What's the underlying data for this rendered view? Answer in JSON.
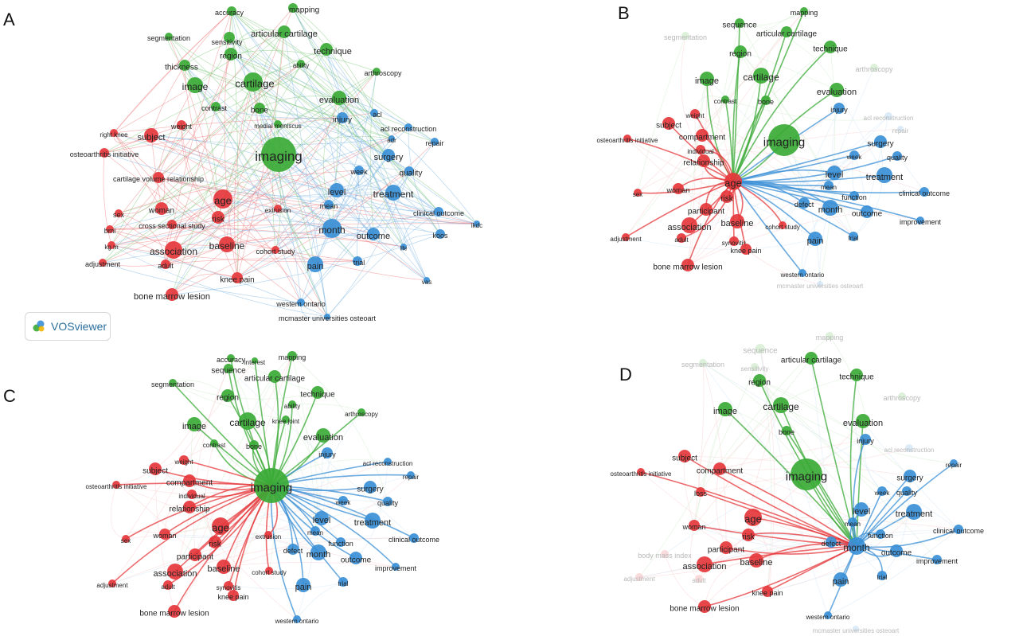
{
  "colors": {
    "green": "#3aaa35",
    "red": "#e5373b",
    "blue": "#3a8fd6",
    "faded": "#d9d9d9"
  },
  "watermark": {
    "label": "VOSviewer",
    "icon": "vosviewer-logo-icon"
  },
  "panels": [
    {
      "letter": "A",
      "focus": "",
      "nodes": [
        {
          "label": "accuracy",
          "cluster": "green"
        },
        {
          "label": "mapping",
          "cluster": "green"
        },
        {
          "label": "segmentation",
          "cluster": "green"
        },
        {
          "label": "sensitivity",
          "cluster": "green"
        },
        {
          "label": "articular cartilage",
          "cluster": "green"
        },
        {
          "label": "technique",
          "cluster": "green"
        },
        {
          "label": "region",
          "cluster": "green"
        },
        {
          "label": "ability",
          "cluster": "green"
        },
        {
          "label": "thickness",
          "cluster": "green"
        },
        {
          "label": "image",
          "cluster": "green"
        },
        {
          "label": "cartilage",
          "cluster": "green"
        },
        {
          "label": "arthroscopy",
          "cluster": "green"
        },
        {
          "label": "contrast",
          "cluster": "green"
        },
        {
          "label": "bone",
          "cluster": "green"
        },
        {
          "label": "evaluation",
          "cluster": "green"
        },
        {
          "label": "medial meniscus",
          "cluster": "green"
        },
        {
          "label": "imaging",
          "cluster": "green"
        },
        {
          "label": "injury",
          "cluster": "blue"
        },
        {
          "label": "acl",
          "cluster": "blue"
        },
        {
          "label": "acl reconstruction",
          "cluster": "blue"
        },
        {
          "label": "adr",
          "cluster": "blue"
        },
        {
          "label": "repair",
          "cluster": "blue"
        },
        {
          "label": "surgery",
          "cluster": "blue"
        },
        {
          "label": "quality",
          "cluster": "blue"
        },
        {
          "label": "week",
          "cluster": "blue"
        },
        {
          "label": "level",
          "cluster": "blue"
        },
        {
          "label": "treatment",
          "cluster": "blue"
        },
        {
          "label": "mean",
          "cluster": "blue"
        },
        {
          "label": "clinical outcome",
          "cluster": "blue"
        },
        {
          "label": "ikdc",
          "cluster": "blue"
        },
        {
          "label": "month",
          "cluster": "blue"
        },
        {
          "label": "outcome",
          "cluster": "blue"
        },
        {
          "label": "koos",
          "cluster": "blue"
        },
        {
          "label": "life",
          "cluster": "blue"
        },
        {
          "label": "pain",
          "cluster": "blue"
        },
        {
          "label": "trial",
          "cluster": "blue"
        },
        {
          "label": "vas",
          "cluster": "blue"
        },
        {
          "label": "western ontario",
          "cluster": "blue"
        },
        {
          "label": "mcmaster universities osteoart",
          "cluster": "blue"
        },
        {
          "label": "right knee",
          "cluster": "red"
        },
        {
          "label": "weight",
          "cluster": "red"
        },
        {
          "label": "subject",
          "cluster": "red"
        },
        {
          "label": "osteoarthritis initiative",
          "cluster": "red"
        },
        {
          "label": "cartilage volume relationship",
          "cluster": "red"
        },
        {
          "label": "age",
          "cluster": "red"
        },
        {
          "label": "woman",
          "cluster": "red"
        },
        {
          "label": "risk",
          "cluster": "red"
        },
        {
          "label": "sex",
          "cluster": "red"
        },
        {
          "label": "extrusion",
          "cluster": "red"
        },
        {
          "label": "cross sectional study",
          "cluster": "red"
        },
        {
          "label": "bmi",
          "cluster": "red"
        },
        {
          "label": "kg m",
          "cluster": "red"
        },
        {
          "label": "baseline",
          "cluster": "red"
        },
        {
          "label": "association",
          "cluster": "red"
        },
        {
          "label": "cohort study",
          "cluster": "red"
        },
        {
          "label": "adjustment",
          "cluster": "red"
        },
        {
          "label": "adult",
          "cluster": "red"
        },
        {
          "label": "knee pain",
          "cluster": "red"
        },
        {
          "label": "bone marrow lesion",
          "cluster": "red"
        }
      ]
    },
    {
      "letter": "B",
      "focus": "age",
      "nodes": [
        {
          "label": "mapping",
          "cluster": "green"
        },
        {
          "label": "sequence",
          "cluster": "green"
        },
        {
          "label": "articular cartilage",
          "cluster": "green"
        },
        {
          "label": "technique",
          "cluster": "green"
        },
        {
          "label": "segmentation",
          "cluster": "green",
          "faded": true
        },
        {
          "label": "region",
          "cluster": "green"
        },
        {
          "label": "arthroscopy",
          "cluster": "green",
          "faded": true
        },
        {
          "label": "image",
          "cluster": "green"
        },
        {
          "label": "cartilage",
          "cluster": "green"
        },
        {
          "label": "contrast",
          "cluster": "green"
        },
        {
          "label": "bone",
          "cluster": "green"
        },
        {
          "label": "evaluation",
          "cluster": "green"
        },
        {
          "label": "imaging",
          "cluster": "green"
        },
        {
          "label": "injury",
          "cluster": "blue"
        },
        {
          "label": "acl reconstruction",
          "cluster": "blue",
          "faded": true
        },
        {
          "label": "repair",
          "cluster": "blue",
          "faded": true
        },
        {
          "label": "surgery",
          "cluster": "blue"
        },
        {
          "label": "quality",
          "cluster": "blue"
        },
        {
          "label": "week",
          "cluster": "blue"
        },
        {
          "label": "level",
          "cluster": "blue"
        },
        {
          "label": "treatment",
          "cluster": "blue"
        },
        {
          "label": "mean",
          "cluster": "blue"
        },
        {
          "label": "clinical outcome",
          "cluster": "blue"
        },
        {
          "label": "function",
          "cluster": "blue"
        },
        {
          "label": "defect",
          "cluster": "blue"
        },
        {
          "label": "month",
          "cluster": "blue"
        },
        {
          "label": "outcome",
          "cluster": "blue"
        },
        {
          "label": "improvement",
          "cluster": "blue"
        },
        {
          "label": "pain",
          "cluster": "blue"
        },
        {
          "label": "trial",
          "cluster": "blue"
        },
        {
          "label": "western ontario",
          "cluster": "blue"
        },
        {
          "label": "mcmaster universities osteoart",
          "cluster": "blue",
          "faded": true
        },
        {
          "label": "subject",
          "cluster": "red"
        },
        {
          "label": "weight",
          "cluster": "red"
        },
        {
          "label": "compartment",
          "cluster": "red"
        },
        {
          "label": "osteoarthritis initiative",
          "cluster": "red"
        },
        {
          "label": "individual",
          "cluster": "red"
        },
        {
          "label": "relationship",
          "cluster": "red"
        },
        {
          "label": "age",
          "cluster": "red"
        },
        {
          "label": "woman",
          "cluster": "red"
        },
        {
          "label": "sex",
          "cluster": "red"
        },
        {
          "label": "risk",
          "cluster": "red"
        },
        {
          "label": "participant",
          "cluster": "red"
        },
        {
          "label": "baseline",
          "cluster": "red"
        },
        {
          "label": "association",
          "cluster": "red"
        },
        {
          "label": "synovitis",
          "cluster": "red"
        },
        {
          "label": "cohort study",
          "cluster": "red"
        },
        {
          "label": "adjustment",
          "cluster": "red"
        },
        {
          "label": "adult",
          "cluster": "red"
        },
        {
          "label": "knee pain",
          "cluster": "red"
        },
        {
          "label": "bone marrow lesion",
          "cluster": "red"
        }
      ]
    },
    {
      "letter": "C",
      "focus": "imaging",
      "nodes": [
        {
          "label": "accuracy",
          "cluster": "green"
        },
        {
          "label": "mapping",
          "cluster": "green"
        },
        {
          "label": "interest",
          "cluster": "green"
        },
        {
          "label": "segmentation",
          "cluster": "green"
        },
        {
          "label": "sequence",
          "cluster": "green"
        },
        {
          "label": "articular cartilage",
          "cluster": "green"
        },
        {
          "label": "technique",
          "cluster": "green"
        },
        {
          "label": "region",
          "cluster": "green"
        },
        {
          "label": "ability",
          "cluster": "green"
        },
        {
          "label": "arthroscopy",
          "cluster": "green"
        },
        {
          "label": "image",
          "cluster": "green"
        },
        {
          "label": "cartilage",
          "cluster": "green"
        },
        {
          "label": "knee joint",
          "cluster": "green"
        },
        {
          "label": "contrast",
          "cluster": "green"
        },
        {
          "label": "bone",
          "cluster": "green"
        },
        {
          "label": "evaluation",
          "cluster": "green"
        },
        {
          "label": "imaging",
          "cluster": "green"
        },
        {
          "label": "injury",
          "cluster": "blue"
        },
        {
          "label": "acl reconstruction",
          "cluster": "blue"
        },
        {
          "label": "repair",
          "cluster": "blue"
        },
        {
          "label": "surgery",
          "cluster": "blue"
        },
        {
          "label": "quality",
          "cluster": "blue"
        },
        {
          "label": "week",
          "cluster": "blue"
        },
        {
          "label": "level",
          "cluster": "blue"
        },
        {
          "label": "treatment",
          "cluster": "blue"
        },
        {
          "label": "mean",
          "cluster": "blue"
        },
        {
          "label": "clinical outcome",
          "cluster": "blue"
        },
        {
          "label": "function",
          "cluster": "blue"
        },
        {
          "label": "defect",
          "cluster": "blue"
        },
        {
          "label": "month",
          "cluster": "blue"
        },
        {
          "label": "outcome",
          "cluster": "blue"
        },
        {
          "label": "improvement",
          "cluster": "blue"
        },
        {
          "label": "pain",
          "cluster": "blue"
        },
        {
          "label": "trial",
          "cluster": "blue"
        },
        {
          "label": "western ontario",
          "cluster": "blue"
        },
        {
          "label": "weight",
          "cluster": "red"
        },
        {
          "label": "subject",
          "cluster": "red"
        },
        {
          "label": "compartment",
          "cluster": "red"
        },
        {
          "label": "osteoarthritis initiative",
          "cluster": "red"
        },
        {
          "label": "individual",
          "cluster": "red"
        },
        {
          "label": "relationship",
          "cluster": "red"
        },
        {
          "label": "age",
          "cluster": "red"
        },
        {
          "label": "woman",
          "cluster": "red"
        },
        {
          "label": "risk",
          "cluster": "red"
        },
        {
          "label": "extrusion",
          "cluster": "red"
        },
        {
          "label": "sex",
          "cluster": "red"
        },
        {
          "label": "participant",
          "cluster": "red"
        },
        {
          "label": "baseline",
          "cluster": "red"
        },
        {
          "label": "association",
          "cluster": "red"
        },
        {
          "label": "cohort study",
          "cluster": "red"
        },
        {
          "label": "synovitis",
          "cluster": "red"
        },
        {
          "label": "adjustment",
          "cluster": "red"
        },
        {
          "label": "adult",
          "cluster": "red"
        },
        {
          "label": "knee pain",
          "cluster": "red"
        },
        {
          "label": "bone marrow lesion",
          "cluster": "red"
        }
      ]
    },
    {
      "letter": "D",
      "focus": "month",
      "nodes": [
        {
          "label": "mapping",
          "cluster": "green",
          "faded": true
        },
        {
          "label": "sequence",
          "cluster": "green",
          "faded": true
        },
        {
          "label": "segmentation",
          "cluster": "green",
          "faded": true
        },
        {
          "label": "sensitivity",
          "cluster": "green",
          "faded": true
        },
        {
          "label": "articular cartilage",
          "cluster": "green"
        },
        {
          "label": "technique",
          "cluster": "green"
        },
        {
          "label": "region",
          "cluster": "green"
        },
        {
          "label": "arthroscopy",
          "cluster": "green",
          "faded": true
        },
        {
          "label": "image",
          "cluster": "green"
        },
        {
          "label": "cartilage",
          "cluster": "green"
        },
        {
          "label": "bone",
          "cluster": "green"
        },
        {
          "label": "evaluation",
          "cluster": "green"
        },
        {
          "label": "imaging",
          "cluster": "green"
        },
        {
          "label": "injury",
          "cluster": "blue"
        },
        {
          "label": "acl reconstruction",
          "cluster": "blue",
          "faded": true
        },
        {
          "label": "repair",
          "cluster": "blue"
        },
        {
          "label": "surgery",
          "cluster": "blue"
        },
        {
          "label": "quality",
          "cluster": "blue"
        },
        {
          "label": "week",
          "cluster": "blue"
        },
        {
          "label": "level",
          "cluster": "blue"
        },
        {
          "label": "treatment",
          "cluster": "blue"
        },
        {
          "label": "mean",
          "cluster": "blue"
        },
        {
          "label": "function",
          "cluster": "blue"
        },
        {
          "label": "clinical outcome",
          "cluster": "blue"
        },
        {
          "label": "defect",
          "cluster": "blue"
        },
        {
          "label": "month",
          "cluster": "blue"
        },
        {
          "label": "outcome",
          "cluster": "blue"
        },
        {
          "label": "improvement",
          "cluster": "blue"
        },
        {
          "label": "pain",
          "cluster": "blue"
        },
        {
          "label": "trial",
          "cluster": "blue"
        },
        {
          "label": "western ontario",
          "cluster": "blue"
        },
        {
          "label": "mcmaster universities osteoart",
          "cluster": "blue",
          "faded": true
        },
        {
          "label": "subject",
          "cluster": "red"
        },
        {
          "label": "osteoarthritis initiative",
          "cluster": "red"
        },
        {
          "label": "compartment",
          "cluster": "red"
        },
        {
          "label": "loss",
          "cluster": "red"
        },
        {
          "label": "age",
          "cluster": "red"
        },
        {
          "label": "woman",
          "cluster": "red"
        },
        {
          "label": "risk",
          "cluster": "red"
        },
        {
          "label": "participant",
          "cluster": "red"
        },
        {
          "label": "body mass index",
          "cluster": "red",
          "faded": true
        },
        {
          "label": "association",
          "cluster": "red"
        },
        {
          "label": "baseline",
          "cluster": "red"
        },
        {
          "label": "adjustment",
          "cluster": "red",
          "faded": true
        },
        {
          "label": "adult",
          "cluster": "red",
          "faded": true
        },
        {
          "label": "knee pain",
          "cluster": "red"
        },
        {
          "label": "bone marrow lesion",
          "cluster": "red"
        }
      ]
    }
  ]
}
